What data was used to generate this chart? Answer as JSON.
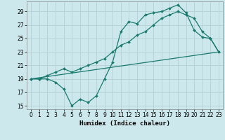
{
  "xlabel": "Humidex (Indice chaleur)",
  "bg_color": "#cce8ec",
  "grid_color": "#b8d4d8",
  "line_color": "#1a7a6e",
  "xlim": [
    -0.5,
    23.5
  ],
  "ylim": [
    14.5,
    30.5
  ],
  "xticks": [
    0,
    1,
    2,
    3,
    4,
    5,
    6,
    7,
    8,
    9,
    10,
    11,
    12,
    13,
    14,
    15,
    16,
    17,
    18,
    19,
    20,
    21,
    22,
    23
  ],
  "yticks": [
    15,
    17,
    19,
    21,
    23,
    25,
    27,
    29
  ],
  "line1_x": [
    0,
    1,
    2,
    3,
    4,
    5,
    6,
    7,
    8,
    9,
    10,
    11,
    12,
    13,
    14,
    15,
    16,
    17,
    18,
    19,
    20,
    21,
    22,
    23
  ],
  "line1_y": [
    19,
    19,
    19,
    18.5,
    17.5,
    15,
    16,
    15.5,
    16.5,
    19,
    21.5,
    26,
    27.5,
    27.2,
    28.5,
    28.8,
    29.0,
    29.5,
    30,
    28.8,
    26.2,
    25.2,
    25,
    23
  ],
  "line2_x": [
    0,
    1,
    2,
    3,
    4,
    5,
    6,
    7,
    8,
    9,
    10,
    11,
    12,
    13,
    14,
    15,
    16,
    17,
    18,
    19,
    20,
    21,
    22,
    23
  ],
  "line2_y": [
    19,
    19,
    19.5,
    20,
    20.5,
    20,
    20.5,
    21,
    21.5,
    22,
    23,
    24,
    24.5,
    25.5,
    26,
    27,
    28,
    28.5,
    29,
    28.5,
    28,
    26,
    25,
    23
  ],
  "line3_x": [
    0,
    23
  ],
  "line3_y": [
    19,
    23
  ]
}
